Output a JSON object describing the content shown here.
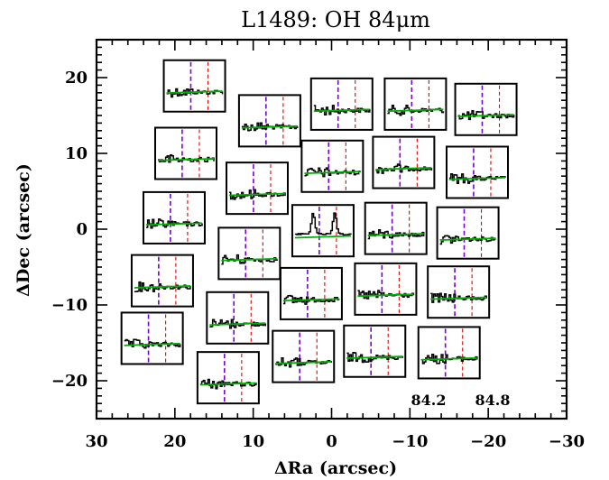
{
  "chart_data": {
    "type": "scatter",
    "title": "L1489: OH 84μm",
    "xlabel": "ΔRa (arcsec)",
    "ylabel": "ΔDec (arcsec)",
    "xlim": [
      30,
      -30
    ],
    "ylim": [
      -25,
      25
    ],
    "x_ticks": [
      "30",
      "20",
      "10",
      "0",
      "−10",
      "−20",
      "−30"
    ],
    "y_ticks": [
      "20",
      "10",
      "0",
      "−10",
      "−20"
    ],
    "x_tick_values": [
      30,
      20,
      10,
      0,
      -10,
      -20,
      -30
    ],
    "y_tick_values": [
      20,
      10,
      0,
      -10,
      -20
    ],
    "inset_wavelength_labels": [
      "84.2",
      "84.8"
    ],
    "inset_colors": {
      "spectrum": "#000000",
      "continuum": "#00b000",
      "line1": "#7a00d0",
      "line2": "#e00000"
    },
    "spaxels": [
      {
        "ra": 17.5,
        "dec": 18.9,
        "peak": false
      },
      {
        "ra": 7.9,
        "dec": 14.3,
        "peak": false
      },
      {
        "ra": -1.3,
        "dec": 16.5,
        "peak": false
      },
      {
        "ra": -10.7,
        "dec": 16.5,
        "peak": false
      },
      {
        "ra": -19.7,
        "dec": 15.8,
        "peak": false
      },
      {
        "ra": 18.6,
        "dec": 10.0,
        "peak": false
      },
      {
        "ra": 9.5,
        "dec": 5.4,
        "peak": false
      },
      {
        "ra": -0.1,
        "dec": 8.3,
        "peak": false
      },
      {
        "ra": -9.2,
        "dec": 8.8,
        "peak": false
      },
      {
        "ra": -18.6,
        "dec": 7.5,
        "peak": false
      },
      {
        "ra": 20.1,
        "dec": 1.5,
        "peak": false
      },
      {
        "ra": 10.5,
        "dec": -3.2,
        "peak": false
      },
      {
        "ra": 1.1,
        "dec": -0.2,
        "peak": true
      },
      {
        "ra": -8.2,
        "dec": 0.1,
        "peak": false
      },
      {
        "ra": -17.4,
        "dec": -0.5,
        "peak": false
      },
      {
        "ra": 21.6,
        "dec": -6.8,
        "peak": false
      },
      {
        "ra": 12.0,
        "dec": -11.7,
        "peak": false
      },
      {
        "ra": 2.6,
        "dec": -8.5,
        "peak": false
      },
      {
        "ra": -6.9,
        "dec": -7.9,
        "peak": false
      },
      {
        "ra": -16.2,
        "dec": -8.3,
        "peak": false
      },
      {
        "ra": 22.9,
        "dec": -14.4,
        "peak": false
      },
      {
        "ra": 13.2,
        "dec": -19.6,
        "peak": false
      },
      {
        "ra": 3.6,
        "dec": -16.8,
        "peak": false
      },
      {
        "ra": -5.5,
        "dec": -16.1,
        "peak": false
      },
      {
        "ra": -15.0,
        "dec": -16.3,
        "peak": false
      }
    ]
  }
}
